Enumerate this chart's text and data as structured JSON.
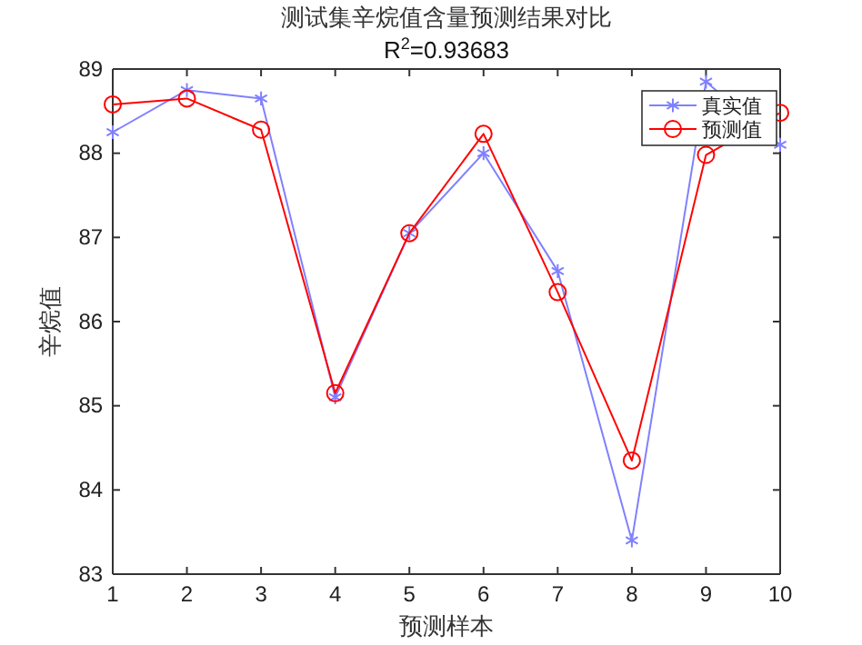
{
  "chart_data": {
    "type": "line",
    "title": "测试集辛烷值含量预测结果对比",
    "subtitle": "R$^{2}$=0.93683",
    "xlabel": "预测样本",
    "ylabel": "辛烷值",
    "x": [
      1,
      2,
      3,
      4,
      5,
      6,
      7,
      8,
      9,
      10
    ],
    "series": [
      {
        "name": "真实值",
        "color": "#8080ff",
        "marker": "cross",
        "values": [
          88.25,
          88.75,
          88.65,
          85.1,
          87.05,
          88.0,
          86.6,
          83.4,
          88.85,
          88.1
        ]
      },
      {
        "name": "预测值",
        "color": "#ff0000",
        "marker": "circle",
        "values": [
          88.58,
          88.65,
          88.28,
          85.15,
          87.05,
          88.23,
          86.35,
          84.35,
          87.98,
          88.48
        ]
      }
    ],
    "xlim": [
      1,
      10
    ],
    "xticks": [
      1,
      2,
      3,
      4,
      5,
      6,
      7,
      8,
      9,
      10
    ],
    "ylim": [
      83,
      89
    ],
    "yticks": [
      83,
      84,
      85,
      86,
      87,
      88,
      89
    ],
    "legend": "top right",
    "grid": false,
    "line_style": "solid"
  }
}
